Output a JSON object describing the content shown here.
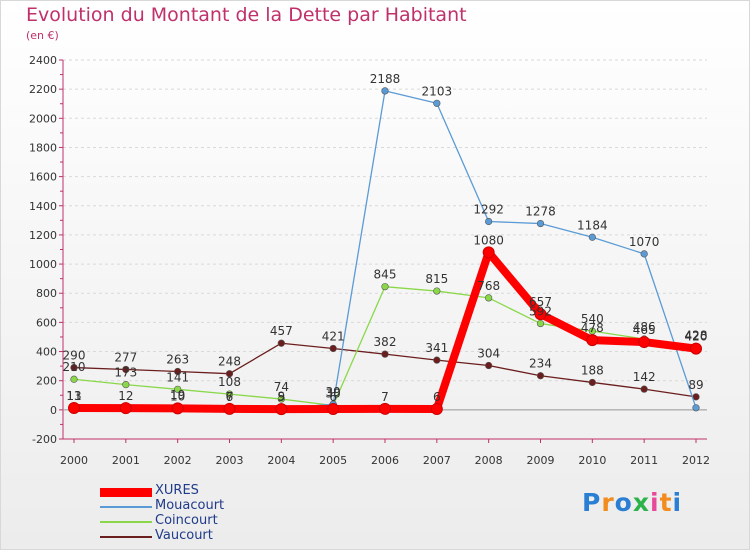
{
  "chart_data": {
    "type": "line",
    "title": "Evolution du Montant de la Dette par Habitant",
    "subtitle": "(en €)",
    "x": [
      2000,
      2001,
      2002,
      2003,
      2004,
      2005,
      2006,
      2007,
      2008,
      2009,
      2010,
      2011,
      2012
    ],
    "ylim": [
      -200,
      2400
    ],
    "yticks": [
      -200,
      0,
      200,
      400,
      600,
      800,
      1000,
      1200,
      1400,
      1600,
      1800,
      2000,
      2200,
      2400
    ],
    "legend_position": "bottom-left",
    "series": [
      {
        "name": "XURES",
        "color": "#ff0000",
        "values": [
          13,
          12,
          10,
          7,
          5,
          6,
          7,
          6,
          1080,
          657,
          478,
          465,
          420
        ]
      },
      {
        "name": "Mouacourt",
        "color": "#5b9bd5",
        "values": [
          11,
          12,
          19,
          6,
          9,
          39,
          2188,
          2103,
          1292,
          1278,
          1184,
          1070,
          14
        ]
      },
      {
        "name": "Coincourt",
        "color": "#8ad84a",
        "values": [
          210,
          173,
          141,
          108,
          74,
          30,
          845,
          815,
          768,
          592,
          540,
          486,
          428
        ]
      },
      {
        "name": "Vaucourt",
        "color": "#6b1e1e",
        "values": [
          290,
          277,
          263,
          248,
          457,
          421,
          382,
          341,
          304,
          234,
          188,
          142,
          89
        ]
      }
    ],
    "data_labels": [
      {
        "text": "290",
        "x": 2000,
        "y": 290
      },
      {
        "text": "210",
        "x": 2000,
        "y": 210
      },
      {
        "text": "13",
        "x": 2000,
        "y": 13
      },
      {
        "text": "11",
        "x": 2000,
        "y": 11
      },
      {
        "text": "277",
        "x": 2001,
        "y": 277
      },
      {
        "text": "173",
        "x": 2001,
        "y": 173
      },
      {
        "text": "12",
        "x": 2001,
        "y": 12
      },
      {
        "text": "263",
        "x": 2002,
        "y": 263
      },
      {
        "text": "141",
        "x": 2002,
        "y": 141
      },
      {
        "text": "19",
        "x": 2002,
        "y": 19
      },
      {
        "text": "10",
        "x": 2002,
        "y": 10
      },
      {
        "text": "248",
        "x": 2003,
        "y": 248
      },
      {
        "text": "108",
        "x": 2003,
        "y": 108
      },
      {
        "text": "7",
        "x": 2003,
        "y": 7
      },
      {
        "text": "6",
        "x": 2003,
        "y": 6
      },
      {
        "text": "457",
        "x": 2004,
        "y": 457
      },
      {
        "text": "74",
        "x": 2004,
        "y": 74
      },
      {
        "text": "9",
        "x": 2004,
        "y": 9
      },
      {
        "text": "5",
        "x": 2004,
        "y": 5
      },
      {
        "text": "421",
        "x": 2005,
        "y": 421
      },
      {
        "text": "39",
        "x": 2005,
        "y": 39
      },
      {
        "text": "30",
        "x": 2005,
        "y": 30
      },
      {
        "text": "6",
        "x": 2005,
        "y": 6
      },
      {
        "text": "2188",
        "x": 2006,
        "y": 2188
      },
      {
        "text": "845",
        "x": 2006,
        "y": 845
      },
      {
        "text": "382",
        "x": 2006,
        "y": 382
      },
      {
        "text": "7",
        "x": 2006,
        "y": 7
      },
      {
        "text": "2103",
        "x": 2007,
        "y": 2103
      },
      {
        "text": "815",
        "x": 2007,
        "y": 815
      },
      {
        "text": "341",
        "x": 2007,
        "y": 341
      },
      {
        "text": "6",
        "x": 2007,
        "y": 6
      },
      {
        "text": "1292",
        "x": 2008,
        "y": 1292
      },
      {
        "text": "1080",
        "x": 2008,
        "y": 1080
      },
      {
        "text": "768",
        "x": 2008,
        "y": 768
      },
      {
        "text": "304",
        "x": 2008,
        "y": 304
      },
      {
        "text": "1278",
        "x": 2009,
        "y": 1278
      },
      {
        "text": "657",
        "x": 2009,
        "y": 657
      },
      {
        "text": "592",
        "x": 2009,
        "y": 592
      },
      {
        "text": "234",
        "x": 2009,
        "y": 234
      },
      {
        "text": "1184",
        "x": 2010,
        "y": 1184
      },
      {
        "text": "540",
        "x": 2010,
        "y": 540
      },
      {
        "text": "478",
        "x": 2010,
        "y": 478
      },
      {
        "text": "188",
        "x": 2010,
        "y": 188
      },
      {
        "text": "1070",
        "x": 2011,
        "y": 1070
      },
      {
        "text": "486",
        "x": 2011,
        "y": 486
      },
      {
        "text": "465",
        "x": 2011,
        "y": 465
      },
      {
        "text": "142",
        "x": 2011,
        "y": 142
      },
      {
        "text": "428",
        "x": 2012,
        "y": 428
      },
      {
        "text": "420",
        "x": 2012,
        "y": 420
      },
      {
        "text": "89",
        "x": 2012,
        "y": 89
      }
    ]
  },
  "logo": {
    "letters": [
      "P",
      "r",
      "o",
      "x",
      "i",
      "t",
      "i"
    ],
    "colors": [
      "#2a7fd4",
      "#f28c1e",
      "#2a7fd4",
      "#2db34a",
      "#e84a9b",
      "#f28c1e",
      "#2a7fd4"
    ]
  }
}
